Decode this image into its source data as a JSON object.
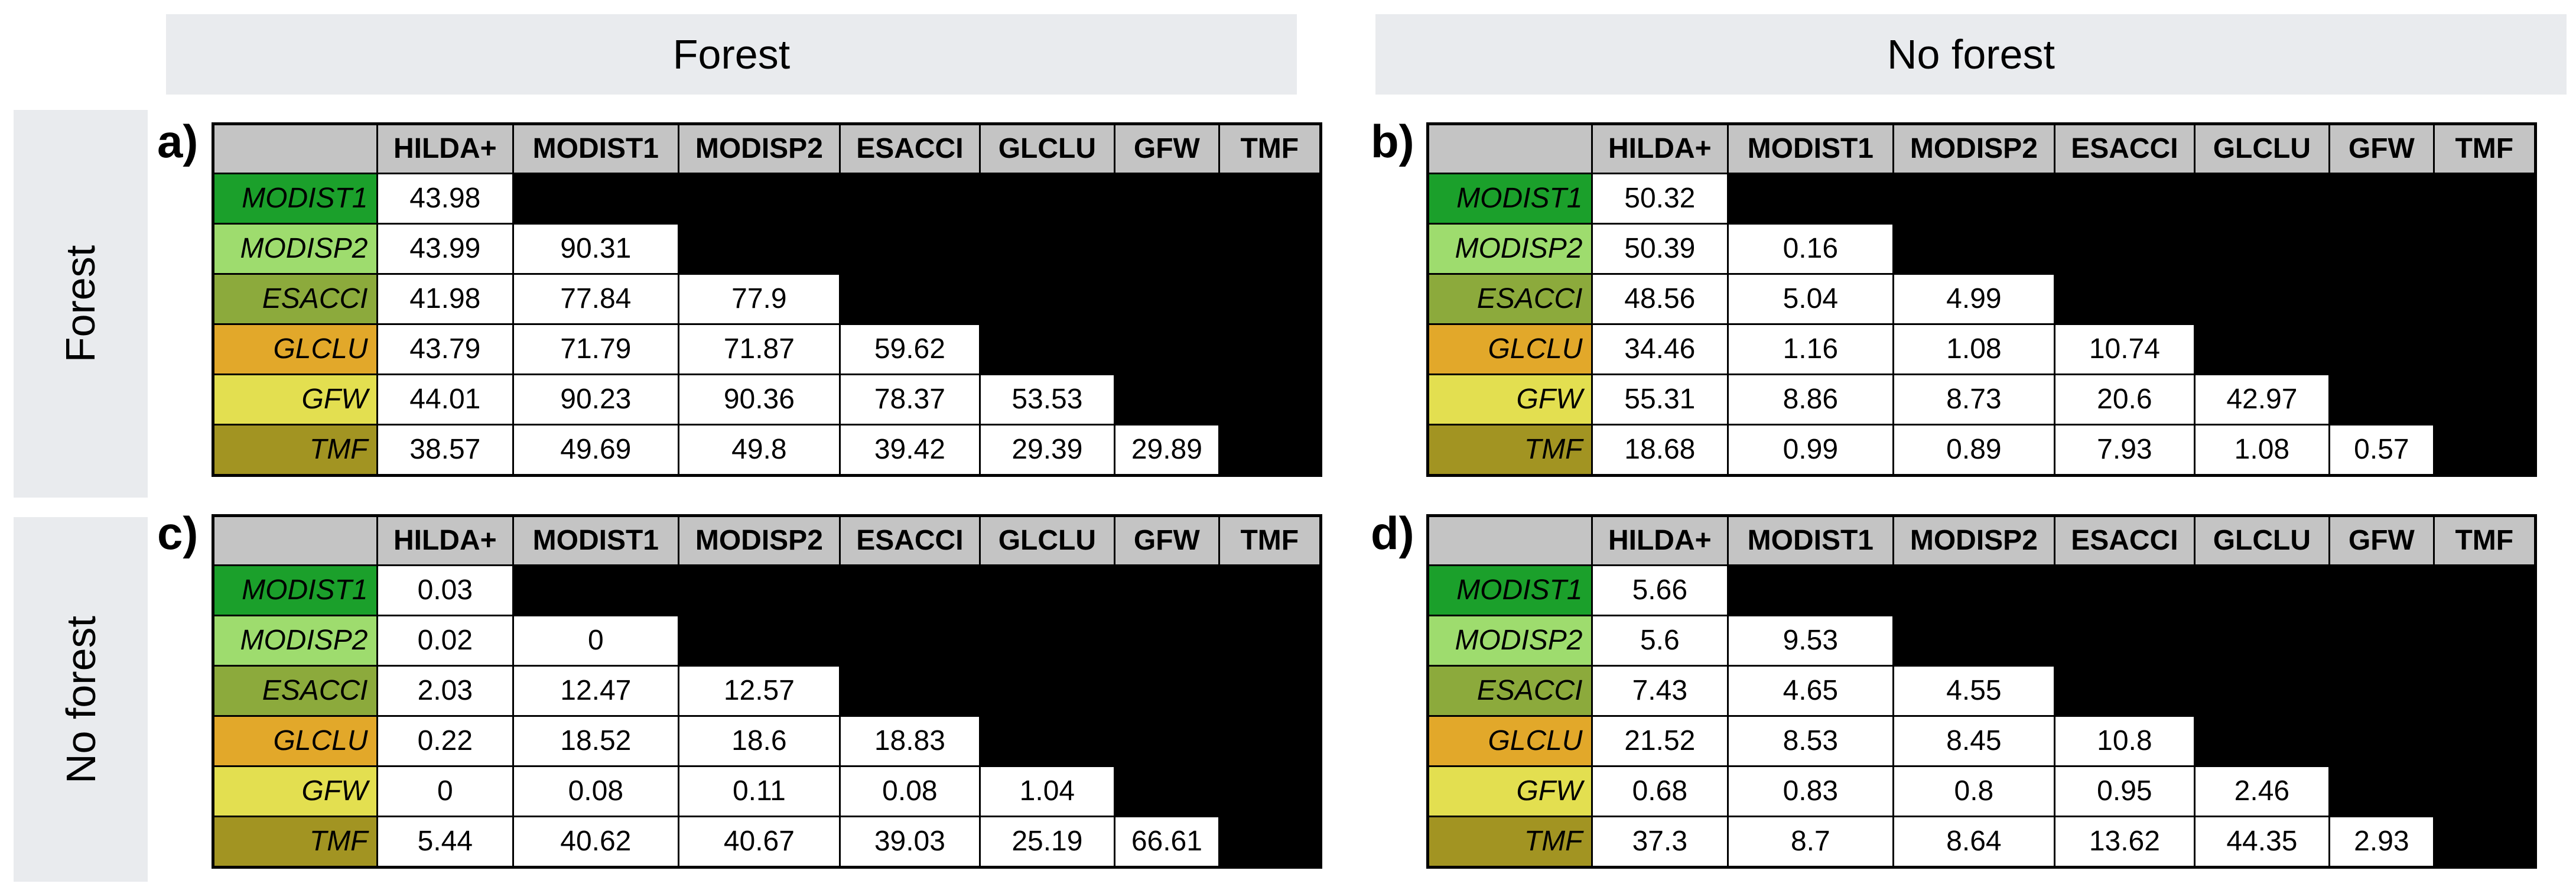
{
  "banners": {
    "top_forest": "Forest",
    "top_no_forest": "No forest",
    "side_forest": "Forest",
    "side_no_forest": "No forest"
  },
  "columns": [
    "HILDA+",
    "MODIST1",
    "MODISP2",
    "ESACCI",
    "GLCLU",
    "GFW",
    "TMF"
  ],
  "rows": [
    {
      "label": "MODIST1",
      "color": "#1ba02b"
    },
    {
      "label": "MODISP2",
      "color": "#9edc6e"
    },
    {
      "label": "ESACCI",
      "color": "#8caa3c"
    },
    {
      "label": "GLCLU",
      "color": "#e2a82a"
    },
    {
      "label": "GFW",
      "color": "#e3df50"
    },
    {
      "label": "TMF",
      "color": "#a29422"
    }
  ],
  "colors": {
    "banner_bg": "#e9ebee",
    "header_bg": "#c4c4c4",
    "grid": "#000000",
    "cell_bg": "#ffffff"
  },
  "chart_data": [
    {
      "type": "table",
      "panel_label": "a)",
      "row_group": "Forest",
      "col_group": "Forest",
      "columns": [
        "HILDA+",
        "MODIST1",
        "MODISP2",
        "ESACCI",
        "GLCLU",
        "GFW",
        "TMF"
      ],
      "row_labels": [
        "MODIST1",
        "MODISP2",
        "ESACCI",
        "GLCLU",
        "GFW",
        "TMF"
      ],
      "values": [
        [
          43.98
        ],
        [
          43.99,
          90.31
        ],
        [
          41.98,
          77.84,
          77.9
        ],
        [
          43.79,
          71.79,
          71.87,
          59.62
        ],
        [
          44.01,
          90.23,
          90.36,
          78.37,
          53.53
        ],
        [
          38.57,
          49.69,
          49.8,
          39.42,
          29.39,
          29.89
        ]
      ]
    },
    {
      "type": "table",
      "panel_label": "b)",
      "row_group": "Forest",
      "col_group": "No forest",
      "columns": [
        "HILDA+",
        "MODIST1",
        "MODISP2",
        "ESACCI",
        "GLCLU",
        "GFW",
        "TMF"
      ],
      "row_labels": [
        "MODIST1",
        "MODISP2",
        "ESACCI",
        "GLCLU",
        "GFW",
        "TMF"
      ],
      "values": [
        [
          50.32
        ],
        [
          50.39,
          0.16
        ],
        [
          48.56,
          5.04,
          4.99
        ],
        [
          34.46,
          1.16,
          1.08,
          10.74
        ],
        [
          55.31,
          8.86,
          8.73,
          20.6,
          42.97
        ],
        [
          18.68,
          0.99,
          0.89,
          7.93,
          1.08,
          0.57
        ]
      ]
    },
    {
      "type": "table",
      "panel_label": "c)",
      "row_group": "No forest",
      "col_group": "Forest",
      "columns": [
        "HILDA+",
        "MODIST1",
        "MODISP2",
        "ESACCI",
        "GLCLU",
        "GFW",
        "TMF"
      ],
      "row_labels": [
        "MODIST1",
        "MODISP2",
        "ESACCI",
        "GLCLU",
        "GFW",
        "TMF"
      ],
      "values": [
        [
          0.03
        ],
        [
          0.02,
          0
        ],
        [
          2.03,
          12.47,
          12.57
        ],
        [
          0.22,
          18.52,
          18.6,
          18.83
        ],
        [
          0,
          0.08,
          0.11,
          0.08,
          1.04
        ],
        [
          5.44,
          40.62,
          40.67,
          39.03,
          25.19,
          66.61
        ]
      ]
    },
    {
      "type": "table",
      "panel_label": "d)",
      "row_group": "No forest",
      "col_group": "No forest",
      "columns": [
        "HILDA+",
        "MODIST1",
        "MODISP2",
        "ESACCI",
        "GLCLU",
        "GFW",
        "TMF"
      ],
      "row_labels": [
        "MODIST1",
        "MODISP2",
        "ESACCI",
        "GLCLU",
        "GFW",
        "TMF"
      ],
      "values": [
        [
          5.66
        ],
        [
          5.6,
          9.53
        ],
        [
          7.43,
          4.65,
          4.55
        ],
        [
          21.52,
          8.53,
          8.45,
          10.8
        ],
        [
          0.68,
          0.83,
          0.8,
          0.95,
          2.46
        ],
        [
          37.3,
          8.7,
          8.64,
          13.62,
          44.35,
          2.93
        ]
      ]
    }
  ]
}
